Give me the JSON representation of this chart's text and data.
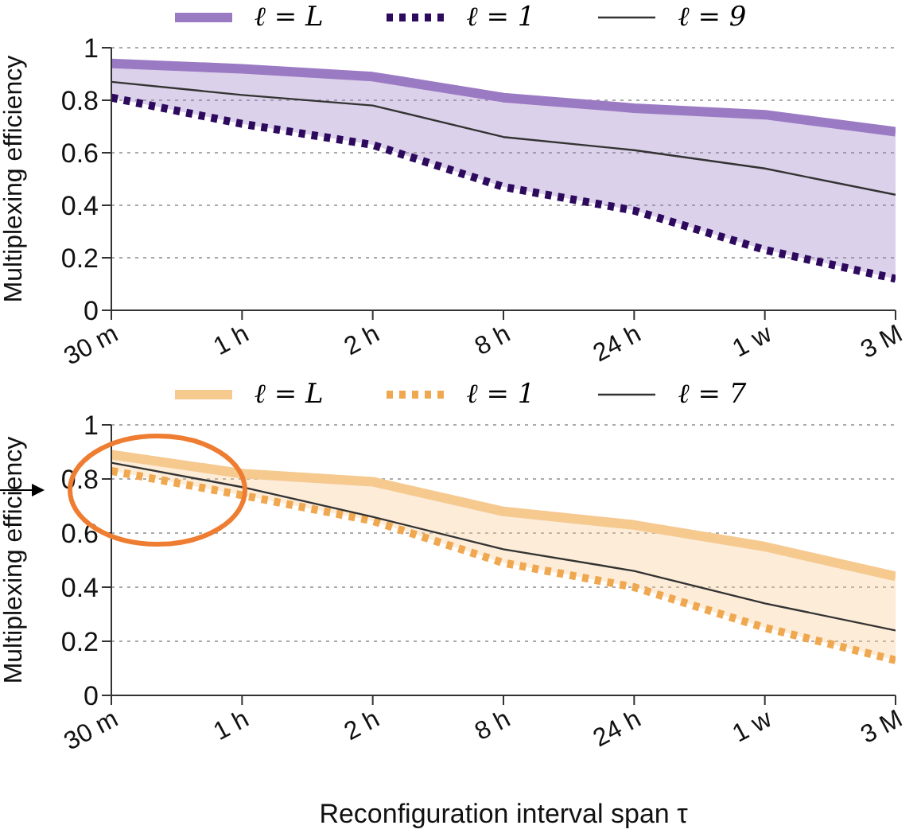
{
  "chart_data": [
    {
      "type": "line",
      "ylabel": "Multiplexing efficiency",
      "categories": [
        "30 m",
        "1 h",
        "2 h",
        "8 h",
        "24 h",
        "1 w",
        "3 M"
      ],
      "ylim": [
        0,
        1
      ],
      "yticks": [
        0,
        0.2,
        0.4,
        0.6,
        0.8,
        1
      ],
      "grid": "y",
      "legend": "top",
      "tick_labels": true,
      "series": [
        {
          "name": "ℓ = L",
          "color": "#9b7ac4",
          "line_style": "solid",
          "values": [
            0.94,
            0.92,
            0.89,
            0.81,
            0.77,
            0.745,
            0.68
          ],
          "lower": [
            0.81,
            0.71,
            0.63,
            0.47,
            0.38,
            0.23,
            0.12
          ],
          "upper": [
            0.94,
            0.92,
            0.89,
            0.81,
            0.77,
            0.745,
            0.68
          ]
        },
        {
          "name": "ℓ = 1",
          "color": "#2d0a5e",
          "line_style": "dotted",
          "values": [
            0.81,
            0.71,
            0.63,
            0.47,
            0.38,
            0.23,
            0.12
          ]
        },
        {
          "name": "ℓ = 9",
          "color": "#333333",
          "line_style": "solid",
          "values": [
            0.87,
            0.82,
            0.78,
            0.66,
            0.61,
            0.54,
            0.44
          ]
        }
      ]
    },
    {
      "type": "line",
      "xlabel": "Reconfiguration interval span τ",
      "ylabel": "Multiplexing efficiency",
      "categories": [
        "30 m",
        "1 h",
        "2 h",
        "8 h",
        "24 h",
        "1 w",
        "3 M"
      ],
      "ylim": [
        0,
        1
      ],
      "yticks": [
        0,
        0.2,
        0.4,
        0.6,
        0.8,
        1
      ],
      "grid": "y",
      "legend": "top",
      "series": [
        {
          "name": "ℓ = L",
          "color": "#f6c98f",
          "line_style": "solid",
          "values": [
            0.89,
            0.82,
            0.79,
            0.68,
            0.63,
            0.55,
            0.44
          ],
          "lower": [
            0.83,
            0.74,
            0.645,
            0.49,
            0.4,
            0.25,
            0.13
          ],
          "upper": [
            0.89,
            0.82,
            0.79,
            0.68,
            0.63,
            0.55,
            0.44
          ]
        },
        {
          "name": "ℓ = 1",
          "color": "#f0a850",
          "line_style": "dotted",
          "values": [
            0.83,
            0.74,
            0.645,
            0.49,
            0.4,
            0.25,
            0.13
          ]
        },
        {
          "name": "ℓ = 7",
          "color": "#333333",
          "line_style": "solid",
          "values": [
            0.86,
            0.77,
            0.66,
            0.54,
            0.46,
            0.34,
            0.24
          ]
        }
      ]
    }
  ]
}
